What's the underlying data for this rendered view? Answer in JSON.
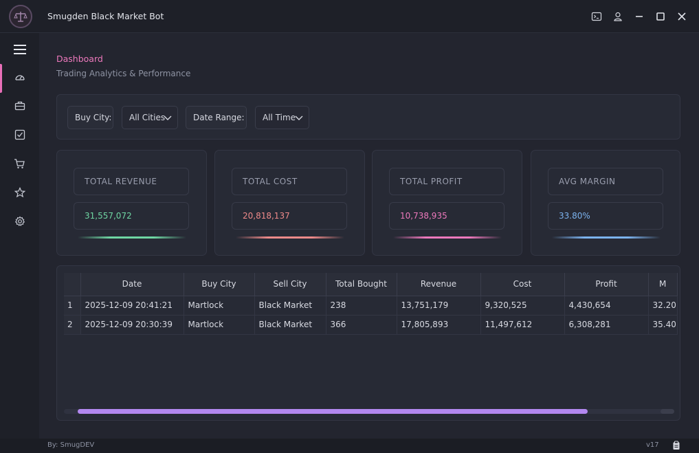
{
  "window": {
    "title": "Smugden Black Market Bot"
  },
  "icons": {
    "logo": "scales-of-justice-logo",
    "terminal": "terminal-icon",
    "user": "user-icon",
    "minimize": "minimize-icon",
    "maximize": "maximize-icon",
    "close": "close-icon"
  },
  "sidebar": {
    "menu": "hamburger-menu-icon",
    "items": [
      "dashboard-icon",
      "briefcase-icon",
      "checklist-icon",
      "cart-icon",
      "star-icon",
      "gear-icon"
    ],
    "active_index": 0
  },
  "page": {
    "title": "Dashboard",
    "subtitle": "Trading Analytics & Performance"
  },
  "filters": {
    "buy_city_label": "Buy City:",
    "buy_city_value": "All Cities",
    "date_range_label": "Date Range:",
    "date_range_value": "All Time"
  },
  "cards": [
    {
      "label": "TOTAL REVENUE",
      "value": "31,557,072",
      "color": "#6fd6a3"
    },
    {
      "label": "TOTAL COST",
      "value": "20,818,137",
      "color": "#ef8a8a"
    },
    {
      "label": "TOTAL PROFIT",
      "value": "10,738,935",
      "color": "#ee79bd"
    },
    {
      "label": "AVG MARGIN",
      "value": "33.80%",
      "color": "#7cb3ef"
    }
  ],
  "table": {
    "columns": [
      "Date",
      "Buy City",
      "Sell City",
      "Total Bought",
      "Revenue",
      "Cost",
      "Profit",
      "M"
    ],
    "rows": [
      {
        "num": "1",
        "cells": [
          "2025-12-09 20:41:21",
          "Martlock",
          "Black Market",
          "238",
          "13,751,179",
          "9,320,525",
          "4,430,654",
          "32.20"
        ]
      },
      {
        "num": "2",
        "cells": [
          "2025-12-09 20:30:39",
          "Martlock",
          "Black Market",
          "366",
          "17,805,893",
          "11,497,612",
          "6,308,281",
          "35.40"
        ]
      }
    ],
    "scroll_fraction": 0.835
  },
  "status": {
    "author": "By: SmugDEV",
    "version": "v17",
    "icon": "clipboard-icon"
  }
}
